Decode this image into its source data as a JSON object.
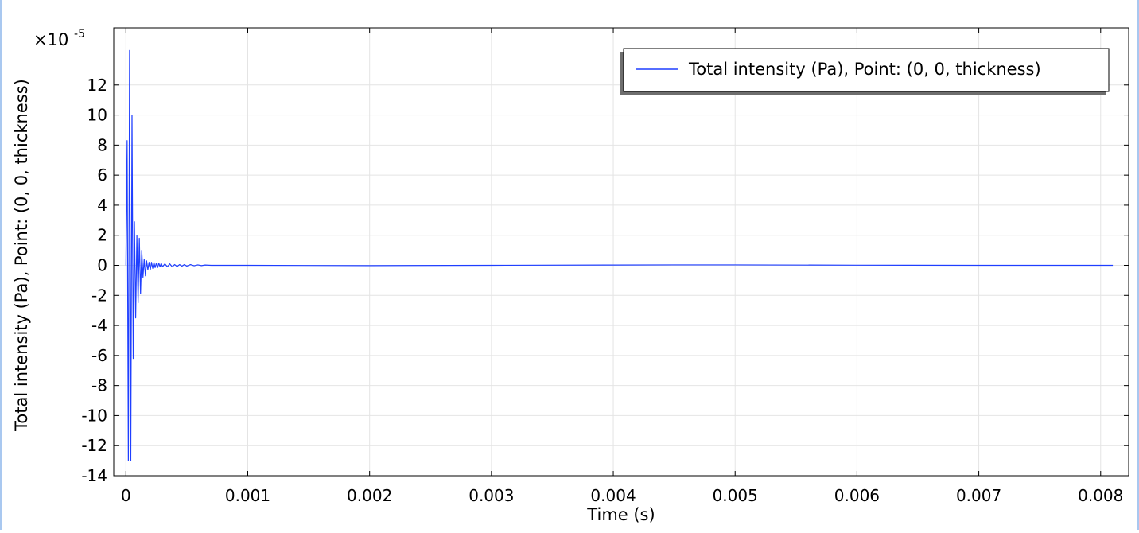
{
  "chart_data": {
    "type": "line",
    "title": "",
    "xlabel": "Time (s)",
    "ylabel": "Total intensity (Pa), Point: (0, 0, thickness)",
    "y_multiplier": "×10",
    "y_exponent": "-5",
    "xlim": [
      -0.0001,
      0.00823
    ],
    "ylim": [
      -14.0,
      15.8
    ],
    "x_ticks": [
      0,
      0.001,
      0.002,
      0.003,
      0.004,
      0.005,
      0.006,
      0.007,
      0.008
    ],
    "x_tick_labels": [
      "0",
      "0.001",
      "0.002",
      "0.003",
      "0.004",
      "0.005",
      "0.006",
      "0.007",
      "0.008"
    ],
    "y_ticks": [
      -14,
      -12,
      -10,
      -8,
      -6,
      -4,
      -2,
      0,
      2,
      4,
      6,
      8,
      10,
      12
    ],
    "y_tick_labels": [
      "-14",
      "-12",
      "-10",
      "-8",
      "-6",
      "-4",
      "-2",
      "0",
      "2",
      "4",
      "6",
      "8",
      "10",
      "12"
    ],
    "grid": true,
    "legend_position": "top-right",
    "series": [
      {
        "name": "Total intensity (Pa), Point: (0, 0, thickness)",
        "color": "#1f3fff",
        "x": [
          0,
          1e-05,
          2e-05,
          3e-05,
          4e-05,
          5e-05,
          6e-05,
          7e-05,
          8e-05,
          9e-05,
          0.0001,
          0.00011,
          0.00012,
          0.00013,
          0.00014,
          0.00015,
          0.00016,
          0.00017,
          0.00018,
          0.00019,
          0.0002,
          0.00021,
          0.00022,
          0.00023,
          0.00024,
          0.00025,
          0.00026,
          0.00027,
          0.00028,
          0.00029,
          0.0003,
          0.00032,
          0.00034,
          0.00036,
          0.00038,
          0.0004,
          0.00042,
          0.00044,
          0.00046,
          0.00048,
          0.0005,
          0.00053,
          0.00056,
          0.00059,
          0.00062,
          0.00065,
          0.0007,
          0.0008,
          0.001,
          0.002,
          0.003,
          0.004,
          0.0045,
          0.005,
          0.006,
          0.007,
          0.008,
          0.0081
        ],
        "values": [
          0,
          8.3,
          -13,
          14.3,
          -13,
          10,
          -6.2,
          2.9,
          -3.5,
          2.0,
          -2.5,
          1.8,
          -1.9,
          1.0,
          -0.8,
          0.4,
          -0.7,
          0.3,
          -0.3,
          0.2,
          -0.3,
          0.2,
          -0.2,
          0.2,
          -0.15,
          0.15,
          -0.15,
          0.15,
          -0.1,
          0.15,
          -0.1,
          0.1,
          -0.1,
          0.1,
          -0.1,
          0.05,
          -0.08,
          0.05,
          -0.05,
          0.05,
          -0.05,
          0.05,
          -0.03,
          0.03,
          -0.02,
          0.02,
          0,
          0,
          0,
          -0.02,
          0,
          0.02,
          0.03,
          0.03,
          0.01,
          0,
          0,
          0
        ]
      }
    ]
  }
}
